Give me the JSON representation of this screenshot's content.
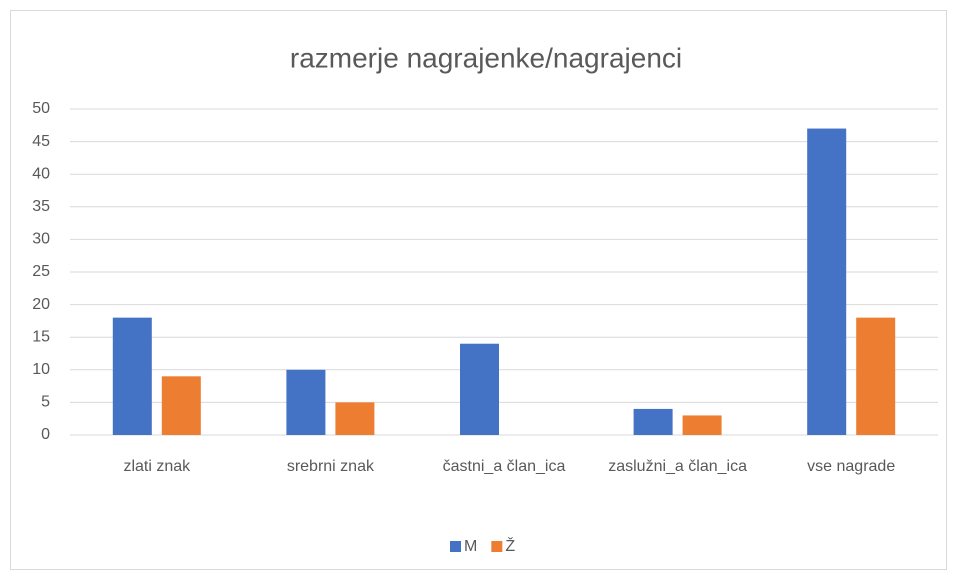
{
  "chart_data": {
    "type": "bar",
    "title": "razmerje nagrajenke/nagrajenci",
    "categories": [
      "zlati znak",
      "srebrni znak",
      "častni_a član_ica",
      "zaslužni_a član_ica",
      "vse nagrade"
    ],
    "series": [
      {
        "name": "M",
        "color": "#4472c4",
        "values": [
          18,
          10,
          14,
          4,
          47
        ]
      },
      {
        "name": "Ž",
        "color": "#ed7d31",
        "values": [
          9,
          5,
          0,
          3,
          18
        ]
      }
    ],
    "ylim": [
      0,
      50
    ],
    "yticks": [
      0,
      5,
      10,
      15,
      20,
      25,
      30,
      35,
      40,
      45,
      50
    ],
    "grid": true,
    "legend": "bottom"
  }
}
